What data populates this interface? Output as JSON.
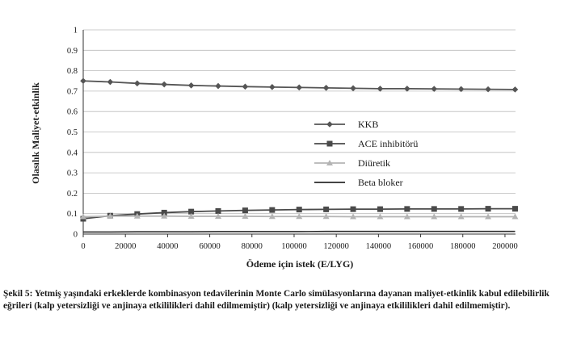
{
  "chart_data": {
    "type": "line",
    "title": "",
    "xlabel": "Ödeme için istek (E/LYG)",
    "ylabel": "Olasılık Maliyet-etkinlik",
    "xlim": [
      0,
      205000
    ],
    "ylim": [
      0,
      1
    ],
    "x_ticks": [
      "0",
      "20000",
      "40000",
      "60000",
      "80000",
      "100000",
      "120000",
      "140000",
      "160000",
      "180000",
      "200000"
    ],
    "y_ticks": [
      "0",
      "0.1",
      "0.2",
      "0.3",
      "0.4",
      "0.5",
      "0.6",
      "0.7",
      "0.8",
      "0.9",
      "1"
    ],
    "grid": "horizontal",
    "legend_position": "center-right",
    "x": [
      0,
      12800,
      25600,
      38400,
      51200,
      64000,
      76800,
      89600,
      102400,
      115200,
      128000,
      140800,
      153600,
      166400,
      179200,
      192000,
      204800
    ],
    "series": [
      {
        "name": "KKB",
        "marker": "diamond",
        "color": "#555555",
        "values": [
          0.75,
          0.745,
          0.738,
          0.733,
          0.728,
          0.725,
          0.722,
          0.72,
          0.718,
          0.716,
          0.714,
          0.712,
          0.712,
          0.711,
          0.71,
          0.709,
          0.708
        ]
      },
      {
        "name": "ACE inhibitörü",
        "marker": "square",
        "color": "#4a4a4a",
        "values": [
          0.075,
          0.09,
          0.098,
          0.105,
          0.11,
          0.113,
          0.116,
          0.118,
          0.12,
          0.121,
          0.122,
          0.122,
          0.123,
          0.123,
          0.123,
          0.124,
          0.124
        ]
      },
      {
        "name": "Diüretik",
        "marker": "triangle",
        "color": "#b4b4b4",
        "values": [
          0.085,
          0.088,
          0.088,
          0.088,
          0.087,
          0.087,
          0.087,
          0.086,
          0.086,
          0.086,
          0.085,
          0.085,
          0.085,
          0.085,
          0.085,
          0.085,
          0.085
        ]
      },
      {
        "name": "Beta bloker",
        "marker": "none",
        "color": "#2a2a2a",
        "values": [
          0.01,
          0.01,
          0.011,
          0.011,
          0.011,
          0.012,
          0.012,
          0.012,
          0.012,
          0.013,
          0.013,
          0.013,
          0.013,
          0.013,
          0.013,
          0.013,
          0.013
        ]
      }
    ]
  },
  "caption": "Şekil 5: Yetmiş yaşındaki erkeklerde kombinasyon tedavilerinin Monte Carlo simülasyonlarına dayanan maliyet-etkinlik kabul edilebilirlik eğrileri (kalp yetersizliği ve anjinaya etkililikleri dahil edilmemiştir) (kalp yetersizliği ve anjinaya etkililikleri dahil edilmemiştir)."
}
